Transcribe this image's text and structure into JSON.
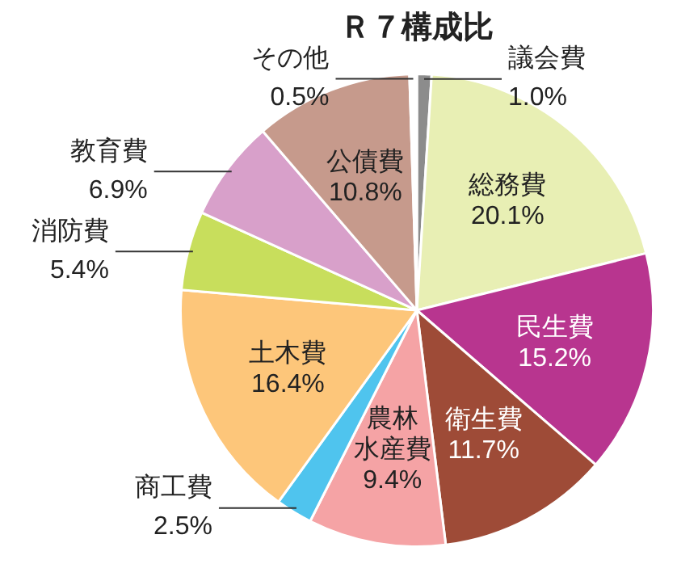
{
  "chart_data": {
    "type": "pie",
    "title": "Ｒ７構成比",
    "categories": [
      "議会費",
      "総務費",
      "民生費",
      "衛生費",
      "農林水産費",
      "商工費",
      "土木費",
      "消防費",
      "教育費",
      "公債費",
      "その他"
    ],
    "values": [
      1.0,
      20.1,
      15.2,
      11.7,
      9.4,
      2.5,
      16.4,
      5.4,
      6.9,
      10.8,
      0.5
    ],
    "value_labels": [
      "1.0%",
      "20.1%",
      "15.2%",
      "11.7%",
      "9.4%",
      "2.5%",
      "16.4%",
      "5.4%",
      "6.9%",
      "10.8%",
      "0.5%"
    ],
    "colors": [
      "#8c8c8c",
      "#e8efb4",
      "#b8358f",
      "#9e4b37",
      "#f5a3a5",
      "#4fc4ee",
      "#fdc67a",
      "#c8de5c",
      "#d8a0ca",
      "#c69a8c",
      "#ffffff"
    ],
    "legend": false
  }
}
